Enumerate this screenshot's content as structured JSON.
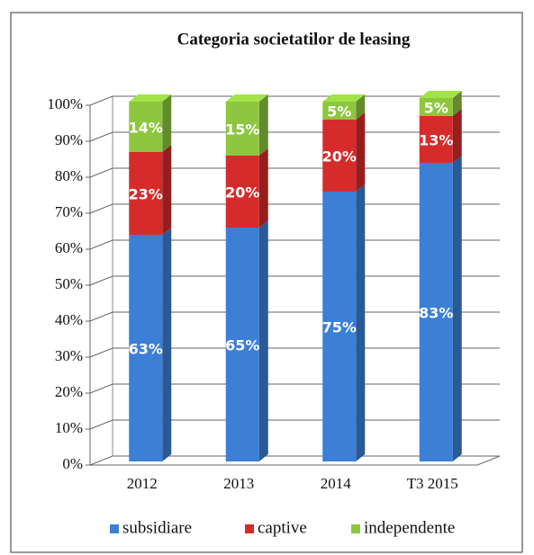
{
  "chart_data": {
    "type": "stacked-bar-3d",
    "title": "Categoria societatilor de leasing",
    "categories": [
      "2012",
      "2013",
      "2014",
      "T3 2015"
    ],
    "series": [
      {
        "name": "subsidiare",
        "color": "#3b7fd6",
        "values": [
          63,
          65,
          75,
          83
        ],
        "value_labels": [
          "63%",
          "65%",
          "75%",
          "83%"
        ]
      },
      {
        "name": "captive",
        "color": "#d62b2b",
        "values": [
          23,
          20,
          20,
          13
        ],
        "value_labels": [
          "23%",
          "20%",
          "20%",
          "13%"
        ]
      },
      {
        "name": "independente",
        "color": "#8dc63f",
        "values": [
          14,
          15,
          5,
          5
        ],
        "value_labels": [
          "14%",
          "15%",
          "5%",
          "5%"
        ]
      }
    ],
    "ylim": [
      0,
      100
    ],
    "yticks": [
      {
        "value": 0,
        "label": "0%"
      },
      {
        "value": 10,
        "label": "10%"
      },
      {
        "value": 20,
        "label": "20%"
      },
      {
        "value": 30,
        "label": "30%"
      },
      {
        "value": 40,
        "label": "40%"
      },
      {
        "value": 50,
        "label": "50%"
      },
      {
        "value": 60,
        "label": "60%"
      },
      {
        "value": 70,
        "label": "70%"
      },
      {
        "value": 80,
        "label": "80%"
      },
      {
        "value": 90,
        "label": "90%"
      },
      {
        "value": 100,
        "label": "100%"
      }
    ],
    "grid": true
  }
}
